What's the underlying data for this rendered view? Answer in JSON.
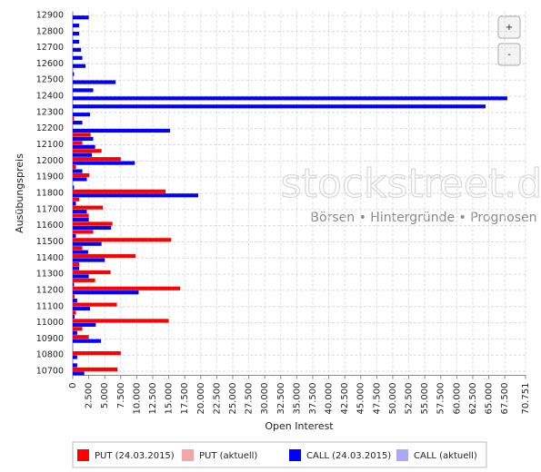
{
  "chart_data": {
    "type": "bar",
    "orientation": "horizontal",
    "y_label": "Ausübungspreis",
    "x_label": "Open Interest",
    "categories": [
      "12900",
      null,
      "12800",
      null,
      "12700",
      null,
      "12600",
      null,
      "12500",
      null,
      "12400",
      null,
      "12300",
      null,
      "12200",
      null,
      "12100",
      null,
      "12000",
      null,
      "11900",
      null,
      "11800",
      null,
      "11700",
      null,
      "11600",
      null,
      "11500",
      null,
      "11400",
      null,
      "11300",
      null,
      "11200",
      null,
      "11100",
      null,
      "11000",
      null,
      "10900",
      null,
      "10800",
      null,
      "10700"
    ],
    "series": [
      {
        "name": "PUT (24.03.2015)",
        "color": "#ff0000",
        "values": [
          0,
          0,
          0,
          0,
          0,
          0,
          0,
          0,
          0,
          0,
          0,
          0,
          0,
          200,
          0,
          2800,
          1500,
          4500,
          7500,
          500,
          2600,
          0,
          14500,
          1000,
          4700,
          2500,
          6200,
          3200,
          15400,
          1500,
          9800,
          1000,
          5900,
          3500,
          16800,
          300,
          6900,
          500,
          15000,
          1500,
          2500,
          0,
          7500,
          0,
          7000
        ]
      },
      {
        "name": "PUT (aktuell)",
        "color": "#f4a6a6",
        "values": [
          null,
          null,
          null,
          null,
          null,
          null,
          null,
          null,
          null,
          null,
          null,
          null,
          null,
          null,
          null,
          null,
          null,
          null,
          null,
          null,
          null,
          null,
          null,
          null,
          null,
          null,
          null,
          null,
          null,
          null,
          null,
          null,
          null,
          null,
          null,
          null,
          null,
          null,
          null,
          null,
          null,
          null,
          null,
          null,
          null
        ]
      },
      {
        "name": "CALL (24.03.2015)",
        "color": "#0000ff",
        "values": [
          2500,
          1000,
          1000,
          1000,
          1300,
          1500,
          2000,
          200,
          6700,
          3200,
          67900,
          64500,
          2700,
          1500,
          15200,
          3200,
          3500,
          3000,
          9700,
          1500,
          2200,
          200,
          19600,
          500,
          2200,
          2500,
          6000,
          500,
          4500,
          2400,
          5000,
          1000,
          2500,
          200,
          10300,
          700,
          2700,
          300,
          3600,
          700,
          4400,
          0,
          700,
          700,
          1800
        ]
      },
      {
        "name": "CALL (aktuell)",
        "color": "#a9a9f5",
        "values": [
          null,
          null,
          null,
          null,
          null,
          null,
          null,
          null,
          null,
          null,
          null,
          null,
          null,
          null,
          null,
          null,
          null,
          null,
          null,
          null,
          null,
          null,
          null,
          null,
          null,
          null,
          null,
          null,
          null,
          null,
          null,
          null,
          null,
          null,
          null,
          null,
          null,
          null,
          null,
          null,
          null,
          null,
          null,
          null,
          null
        ]
      }
    ],
    "xlim": [
      0,
      70751
    ],
    "xticks": [
      0,
      {
        "value": 2500,
        "label": "2.500"
      },
      {
        "value": 5000,
        "label": "5.000"
      },
      {
        "value": 7500,
        "label": "7.500"
      },
      {
        "value": 10000,
        "label": "10.000"
      },
      {
        "value": 12500,
        "label": "12.500"
      },
      {
        "value": 15000,
        "label": "15.000"
      },
      {
        "value": 17500,
        "label": "17.500"
      },
      {
        "value": 20000,
        "label": "20.000"
      },
      {
        "value": 22500,
        "label": "22.500"
      },
      {
        "value": 25000,
        "label": "25.000"
      },
      {
        "value": 27500,
        "label": "27.500"
      },
      {
        "value": 30000,
        "label": "30.000"
      },
      {
        "value": 32500,
        "label": "32.500"
      },
      {
        "value": 35000,
        "label": "35.000"
      },
      {
        "value": 37500,
        "label": "37.500"
      },
      {
        "value": 40000,
        "label": "40.000"
      },
      {
        "value": 42500,
        "label": "42.500"
      },
      {
        "value": 45000,
        "label": "45.000"
      },
      {
        "value": 47500,
        "label": "47.500"
      },
      {
        "value": 50000,
        "label": "50.000"
      },
      {
        "value": 52500,
        "label": "52.500"
      },
      {
        "value": 55000,
        "label": "55.000"
      },
      {
        "value": 57500,
        "label": "57.500"
      },
      {
        "value": 60000,
        "label": "60.000"
      },
      {
        "value": 62500,
        "label": "62.500"
      },
      {
        "value": 65000,
        "label": "65.000"
      },
      {
        "value": 67500,
        "label": "67.500"
      },
      {
        "value": 70751,
        "label": "70.751"
      }
    ],
    "grid": true
  },
  "watermark": {
    "title": "stockstreet.de",
    "tagline": "Börsen • Hintergründe • Prognosen"
  },
  "zoom_buttons": [
    "+",
    "-"
  ]
}
